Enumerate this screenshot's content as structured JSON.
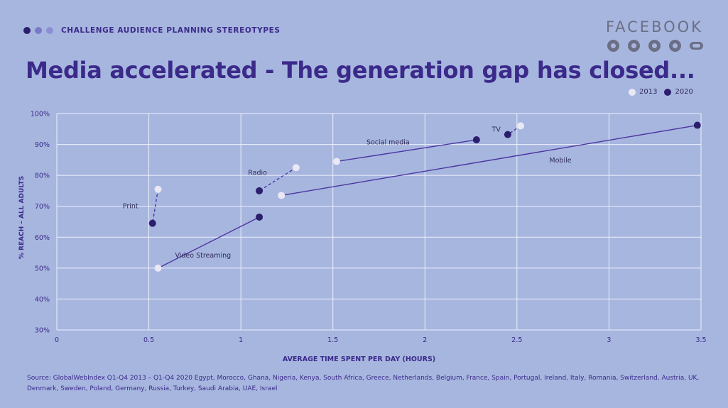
{
  "header": {
    "eyebrow": "CHALLENGE AUDIENCE PLANNING STEREOTYPES",
    "brand": "FACEBOOK",
    "social_icons": [
      "facebook-icon",
      "messenger-icon",
      "instagram-icon",
      "whatsapp-icon",
      "oculus-icon"
    ],
    "title": "Media accelerated - The generation gap has closed..."
  },
  "colors": {
    "background": "#a7b6df",
    "title": "#3b2a8a",
    "point_2013": "#ebe8f6",
    "point_2020": "#2a1e6e",
    "line": "#4b36a0"
  },
  "source": "Source: GlobalWebIndex Q1-Q4 2013 – Q1-Q4 2020 Egypt, Morocco, Ghana, Nigeria, Kenya, South Africa, Greece, Netherlands, Belgium, France, Spain, Portugal, Ireland, Italy, Romania, Switzerland, Austria, UK, Denmark, Sweden, Poland, Germany, Russia, Turkey, Saudi Arabia, UAE, Israel",
  "chart_data": {
    "type": "scatter",
    "xlabel": "AVERAGE TIME SPENT PER DAY (HOURS)",
    "ylabel": "% REACH – ALL ADULTS",
    "xlim": [
      0,
      3.5
    ],
    "ylim": [
      30,
      100
    ],
    "x_ticks": [
      "0",
      "0.5",
      "1",
      "1.5",
      "2",
      "2.5",
      "3",
      "3.5"
    ],
    "y_ticks": [
      "30%",
      "40%",
      "50%",
      "60%",
      "70%",
      "80%",
      "90%",
      "100%"
    ],
    "grid": true,
    "legend_position": "top-right",
    "legend": [
      {
        "name": "2013",
        "color": "#ebe8f6"
      },
      {
        "name": "2020",
        "color": "#2a1e6e"
      }
    ],
    "media": [
      {
        "name": "Print",
        "p2013": [
          0.55,
          75.5
        ],
        "p2020": [
          0.52,
          64.5
        ],
        "dashed": true
      },
      {
        "name": "Video Streaming",
        "p2013": [
          0.55,
          50
        ],
        "p2020": [
          1.1,
          66.5
        ],
        "dashed": false
      },
      {
        "name": "Radio",
        "p2013": [
          1.3,
          82.5
        ],
        "p2020": [
          1.1,
          75
        ],
        "dashed": true
      },
      {
        "name": "Mobile",
        "p2013": [
          1.22,
          73.5
        ],
        "p2020": [
          3.48,
          96.2
        ],
        "dashed": false
      },
      {
        "name": "Social media",
        "p2013": [
          1.52,
          84.5
        ],
        "p2020": [
          2.28,
          91.5
        ],
        "dashed": false
      },
      {
        "name": "TV",
        "p2013": [
          2.52,
          96
        ],
        "p2020": [
          2.45,
          93.2
        ],
        "dashed": true
      }
    ]
  }
}
